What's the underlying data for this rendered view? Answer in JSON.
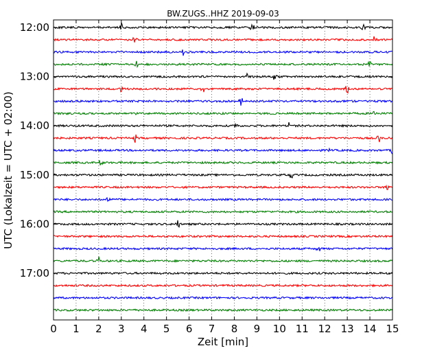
{
  "chart_data": {
    "type": "line",
    "title": "BW.ZUGS..HHZ 2019-09-03",
    "xlabel": "Zeit  [min]",
    "ylabel": "UTC (Lokalzeit = UTC + 02:00)",
    "xlim": [
      0,
      15
    ],
    "x_ticks": [
      "0",
      "1",
      "2",
      "3",
      "4",
      "5",
      "6",
      "7",
      "8",
      "9",
      "10",
      "11",
      "12",
      "13",
      "14",
      "15"
    ],
    "y_tick_labels": [
      "12:00",
      "13:00",
      "14:00",
      "15:00",
      "16:00",
      "17:00"
    ],
    "grid": "vertical dotted",
    "trace_colors": [
      "#000000",
      "#ff0000",
      "#0000ff",
      "#008000"
    ],
    "traces": [
      {
        "start": "12:00",
        "events": [
          3.0,
          8.8,
          13.7
        ]
      },
      {
        "start": "12:15",
        "events": [
          3.6,
          14.2
        ]
      },
      {
        "start": "12:30",
        "events": [
          5.7
        ]
      },
      {
        "start": "12:45",
        "events": [
          3.7,
          14.0
        ]
      },
      {
        "start": "13:00",
        "events": [
          8.6,
          9.8
        ]
      },
      {
        "start": "13:15",
        "events": [
          3.0,
          6.6,
          13.0
        ]
      },
      {
        "start": "13:30",
        "events": [
          8.3
        ]
      },
      {
        "start": "13:45",
        "events": [
          3.7,
          14.2
        ]
      },
      {
        "start": "14:00",
        "events": [
          8.1,
          10.4
        ]
      },
      {
        "start": "14:15",
        "events": [
          3.6,
          14.4
        ]
      },
      {
        "start": "14:30",
        "events": [
          12.2,
          15.0
        ]
      },
      {
        "start": "14:45",
        "events": [
          2.1
        ]
      },
      {
        "start": "15:00",
        "events": [
          10.5
        ]
      },
      {
        "start": "15:15",
        "events": [
          14.8
        ]
      },
      {
        "start": "15:30",
        "events": [
          2.4
        ]
      },
      {
        "start": "15:45",
        "events": []
      },
      {
        "start": "16:00",
        "events": [
          5.5
        ]
      },
      {
        "start": "16:15",
        "events": []
      },
      {
        "start": "16:30",
        "events": [
          11.7
        ]
      },
      {
        "start": "16:45",
        "events": [
          2.0
        ]
      },
      {
        "start": "17:00",
        "events": []
      },
      {
        "start": "17:15",
        "events": []
      },
      {
        "start": "17:30",
        "events": []
      },
      {
        "start": "17:45",
        "events": []
      }
    ]
  }
}
